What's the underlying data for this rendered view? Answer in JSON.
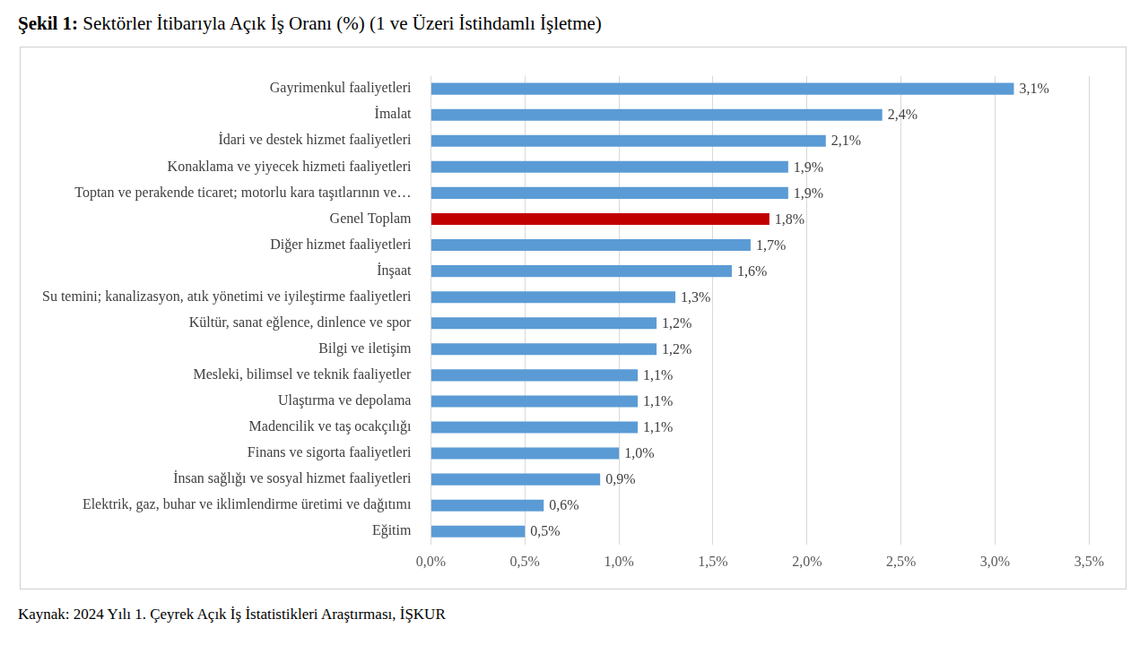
{
  "chart_data": {
    "type": "bar",
    "orientation": "horizontal",
    "title": "Şekil 1: Sektörler İtibarıyla Açık İş Oranı (%) (1 ve Üzeri İstihdamlı İşletme)",
    "source": "Kaynak: 2024 Yılı 1. Çeyrek Açık İş İstatistikleri Araştırması, İŞKUR",
    "categories": [
      "Gayrimenkul faaliyetleri",
      "İmalat",
      "İdari ve destek hizmet faaliyetleri",
      "Konaklama ve yiyecek hizmeti faaliyetleri",
      "Toptan ve perakende ticaret; motorlu kara taşıtlarının ve…",
      "Genel Toplam",
      "Diğer hizmet faaliyetleri",
      "İnşaat",
      "Su temini; kanalizasyon, atık yönetimi ve iyileştirme faaliyetleri",
      "Kültür, sanat eğlence, dinlence ve spor",
      "Bilgi ve iletişim",
      "Mesleki, bilimsel ve teknik faaliyetler",
      "Ulaştırma ve depolama",
      "Madencilik ve taş ocakçılığı",
      "Finans ve sigorta faaliyetleri",
      "İnsan sağlığı ve sosyal hizmet faaliyetleri",
      "Elektrik, gaz, buhar ve iklimlendirme üretimi ve dağıtımı",
      "Eğitim"
    ],
    "values": [
      3.1,
      2.4,
      2.1,
      1.9,
      1.9,
      1.8,
      1.7,
      1.6,
      1.3,
      1.2,
      1.2,
      1.1,
      1.1,
      1.1,
      1.0,
      0.9,
      0.6,
      0.5
    ],
    "value_labels": [
      "3,1%",
      "2,4%",
      "2,1%",
      "1,9%",
      "1,9%",
      "1,8%",
      "1,7%",
      "1,6%",
      "1,3%",
      "1,2%",
      "1,2%",
      "1,1%",
      "1,1%",
      "1,1%",
      "1,0%",
      "0,9%",
      "0,6%",
      "0,5%"
    ],
    "colors": [
      "#5b9bd5",
      "#5b9bd5",
      "#5b9bd5",
      "#5b9bd5",
      "#5b9bd5",
      "#c00000",
      "#5b9bd5",
      "#5b9bd5",
      "#5b9bd5",
      "#5b9bd5",
      "#5b9bd5",
      "#5b9bd5",
      "#5b9bd5",
      "#5b9bd5",
      "#5b9bd5",
      "#5b9bd5",
      "#5b9bd5",
      "#5b9bd5"
    ],
    "data_labels": true,
    "grid": true,
    "xlim": [
      0,
      3.5
    ],
    "xticks": [
      {
        "value": 0,
        "label": "0,0%"
      },
      {
        "value": 0.5,
        "label": "0,5%"
      },
      {
        "value": 1.0,
        "label": "1,0%"
      },
      {
        "value": 1.5,
        "label": "1,5%"
      },
      {
        "value": 2.0,
        "label": "2,0%"
      },
      {
        "value": 2.5,
        "label": "2,5%"
      },
      {
        "value": 3.0,
        "label": "3,0%"
      },
      {
        "value": 3.5,
        "label": "3,5%"
      }
    ]
  }
}
